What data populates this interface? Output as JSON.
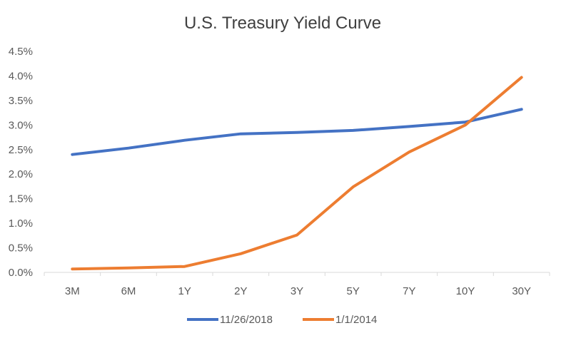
{
  "chart_data": {
    "type": "line",
    "title": "U.S. Treasury Yield Curve",
    "xlabel": "",
    "ylabel": "",
    "categories": [
      "3M",
      "6M",
      "1Y",
      "2Y",
      "3Y",
      "5Y",
      "7Y",
      "10Y",
      "30Y"
    ],
    "ylim": [
      0,
      4.5
    ],
    "yticks": [
      0,
      0.5,
      1.0,
      1.5,
      2.0,
      2.5,
      3.0,
      3.5,
      4.0,
      4.5
    ],
    "ytick_labels": [
      "0.0%",
      "0.5%",
      "1.0%",
      "1.5%",
      "2.0%",
      "2.5%",
      "3.0%",
      "3.5%",
      "4.0%",
      "4.5%"
    ],
    "grid": false,
    "legend_position": "bottom",
    "series": [
      {
        "name": "11/26/2018",
        "color": "#4472C4",
        "values": [
          2.4,
          2.53,
          2.69,
          2.82,
          2.85,
          2.89,
          2.97,
          3.06,
          3.32
        ]
      },
      {
        "name": "1/1/2014",
        "color": "#ED7D31",
        "values": [
          0.07,
          0.09,
          0.12,
          0.38,
          0.76,
          1.74,
          2.45,
          3.0,
          3.97
        ]
      }
    ]
  }
}
